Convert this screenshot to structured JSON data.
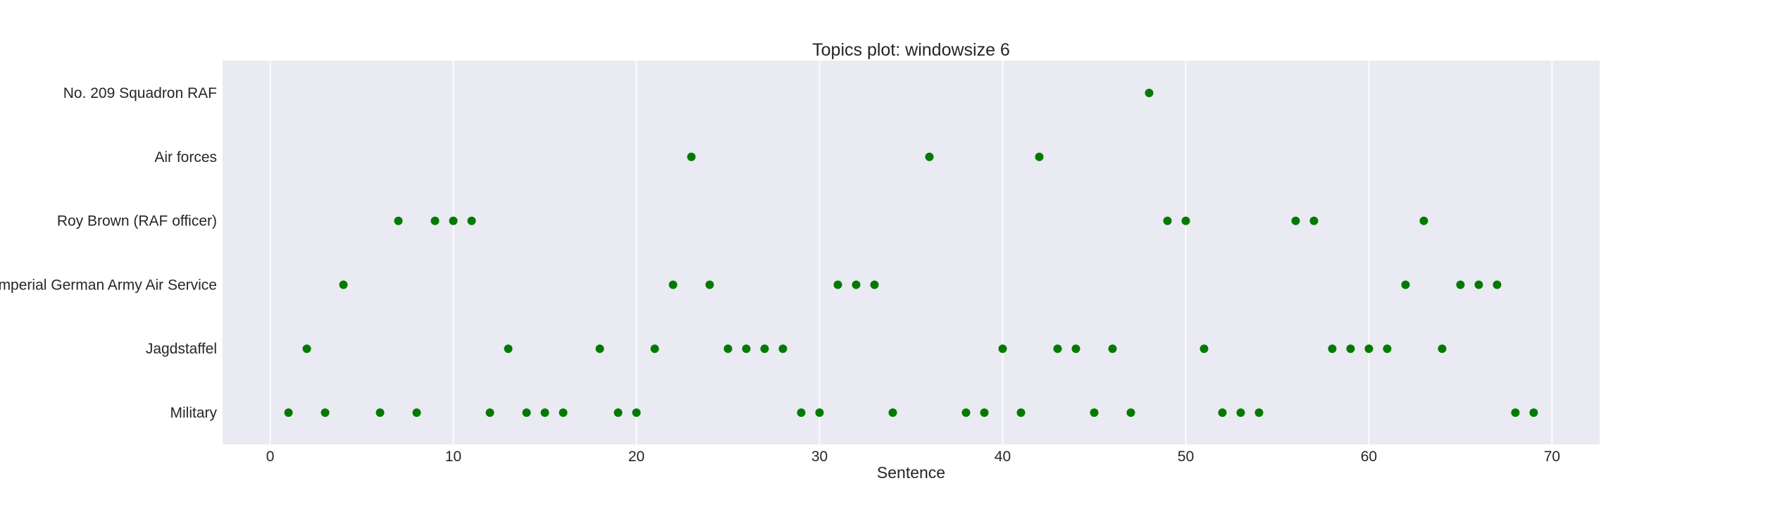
{
  "chart_data": {
    "type": "scatter",
    "title": "Topics plot: windowsize 6",
    "xlabel": "Sentence",
    "ylabel": "",
    "xlim": [
      -2.6,
      72.6
    ],
    "x_ticks": [
      0,
      10,
      20,
      30,
      40,
      50,
      60,
      70
    ],
    "categories": [
      "Military",
      "Jagdstaffel",
      "Imperial German Army Air Service",
      "Roy Brown (RAF officer)",
      "Air forces",
      "No. 209 Squadron RAF"
    ],
    "grid": "vertical",
    "marker_color": "#007a00",
    "background_color": "#eaeaf2",
    "points": [
      {
        "x": 1,
        "y": "Military"
      },
      {
        "x": 2,
        "y": "Jagdstaffel"
      },
      {
        "x": 3,
        "y": "Military"
      },
      {
        "x": 4,
        "y": "Imperial German Army Air Service"
      },
      {
        "x": 6,
        "y": "Military"
      },
      {
        "x": 7,
        "y": "Roy Brown (RAF officer)"
      },
      {
        "x": 8,
        "y": "Military"
      },
      {
        "x": 9,
        "y": "Roy Brown (RAF officer)"
      },
      {
        "x": 10,
        "y": "Roy Brown (RAF officer)"
      },
      {
        "x": 11,
        "y": "Roy Brown (RAF officer)"
      },
      {
        "x": 12,
        "y": "Military"
      },
      {
        "x": 13,
        "y": "Jagdstaffel"
      },
      {
        "x": 14,
        "y": "Military"
      },
      {
        "x": 15,
        "y": "Military"
      },
      {
        "x": 16,
        "y": "Military"
      },
      {
        "x": 18,
        "y": "Jagdstaffel"
      },
      {
        "x": 19,
        "y": "Military"
      },
      {
        "x": 20,
        "y": "Military"
      },
      {
        "x": 21,
        "y": "Jagdstaffel"
      },
      {
        "x": 22,
        "y": "Imperial German Army Air Service"
      },
      {
        "x": 23,
        "y": "Air forces"
      },
      {
        "x": 24,
        "y": "Imperial German Army Air Service"
      },
      {
        "x": 25,
        "y": "Jagdstaffel"
      },
      {
        "x": 26,
        "y": "Jagdstaffel"
      },
      {
        "x": 27,
        "y": "Jagdstaffel"
      },
      {
        "x": 28,
        "y": "Jagdstaffel"
      },
      {
        "x": 29,
        "y": "Military"
      },
      {
        "x": 30,
        "y": "Military"
      },
      {
        "x": 31,
        "y": "Imperial German Army Air Service"
      },
      {
        "x": 32,
        "y": "Imperial German Army Air Service"
      },
      {
        "x": 33,
        "y": "Imperial German Army Air Service"
      },
      {
        "x": 34,
        "y": "Military"
      },
      {
        "x": 36,
        "y": "Air forces"
      },
      {
        "x": 38,
        "y": "Military"
      },
      {
        "x": 39,
        "y": "Military"
      },
      {
        "x": 40,
        "y": "Jagdstaffel"
      },
      {
        "x": 41,
        "y": "Military"
      },
      {
        "x": 42,
        "y": "Air forces"
      },
      {
        "x": 43,
        "y": "Jagdstaffel"
      },
      {
        "x": 44,
        "y": "Jagdstaffel"
      },
      {
        "x": 45,
        "y": "Military"
      },
      {
        "x": 46,
        "y": "Jagdstaffel"
      },
      {
        "x": 47,
        "y": "Military"
      },
      {
        "x": 48,
        "y": "No. 209 Squadron RAF"
      },
      {
        "x": 49,
        "y": "Roy Brown (RAF officer)"
      },
      {
        "x": 50,
        "y": "Roy Brown (RAF officer)"
      },
      {
        "x": 51,
        "y": "Jagdstaffel"
      },
      {
        "x": 52,
        "y": "Military"
      },
      {
        "x": 53,
        "y": "Military"
      },
      {
        "x": 54,
        "y": "Military"
      },
      {
        "x": 56,
        "y": "Roy Brown (RAF officer)"
      },
      {
        "x": 57,
        "y": "Roy Brown (RAF officer)"
      },
      {
        "x": 58,
        "y": "Jagdstaffel"
      },
      {
        "x": 59,
        "y": "Jagdstaffel"
      },
      {
        "x": 60,
        "y": "Jagdstaffel"
      },
      {
        "x": 61,
        "y": "Jagdstaffel"
      },
      {
        "x": 62,
        "y": "Imperial German Army Air Service"
      },
      {
        "x": 63,
        "y": "Roy Brown (RAF officer)"
      },
      {
        "x": 64,
        "y": "Jagdstaffel"
      },
      {
        "x": 65,
        "y": "Imperial German Army Air Service"
      },
      {
        "x": 66,
        "y": "Imperial German Army Air Service"
      },
      {
        "x": 67,
        "y": "Imperial German Army Air Service"
      },
      {
        "x": 68,
        "y": "Military"
      },
      {
        "x": 69,
        "y": "Military"
      }
    ]
  }
}
